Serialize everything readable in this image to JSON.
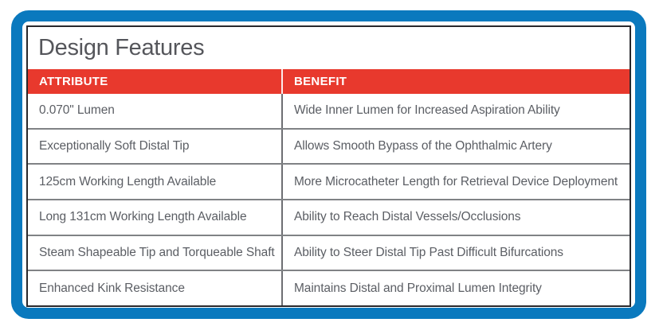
{
  "colors": {
    "frame_blue": "#0a79be",
    "header_red": "#e8392d",
    "title_gray": "#55565b",
    "cell_text": "#5b5e64",
    "row_divider": "#808285",
    "table_border": "#28282c"
  },
  "panel": {
    "title": "Design Features",
    "table": {
      "columns": [
        "ATTRIBUTE",
        "BENEFIT"
      ],
      "rows": [
        {
          "attribute": "0.070\" Lumen",
          "benefit": "Wide Inner Lumen for Increased Aspiration Ability"
        },
        {
          "attribute": "Exceptionally Soft Distal Tip",
          "benefit": "Allows Smooth Bypass of the Ophthalmic Artery"
        },
        {
          "attribute": "125cm Working Length Available",
          "benefit": "More Microcatheter Length for Retrieval Device Deployment"
        },
        {
          "attribute": "Long 131cm Working Length Available",
          "benefit": "Ability to Reach Distal Vessels/Occlusions"
        },
        {
          "attribute": "Steam Shapeable Tip and Torqueable Shaft",
          "benefit": "Ability to Steer Distal Tip Past Difficult Bifurcations"
        },
        {
          "attribute": "Enhanced Kink Resistance",
          "benefit": "Maintains Distal and Proximal Lumen Integrity"
        }
      ]
    }
  }
}
